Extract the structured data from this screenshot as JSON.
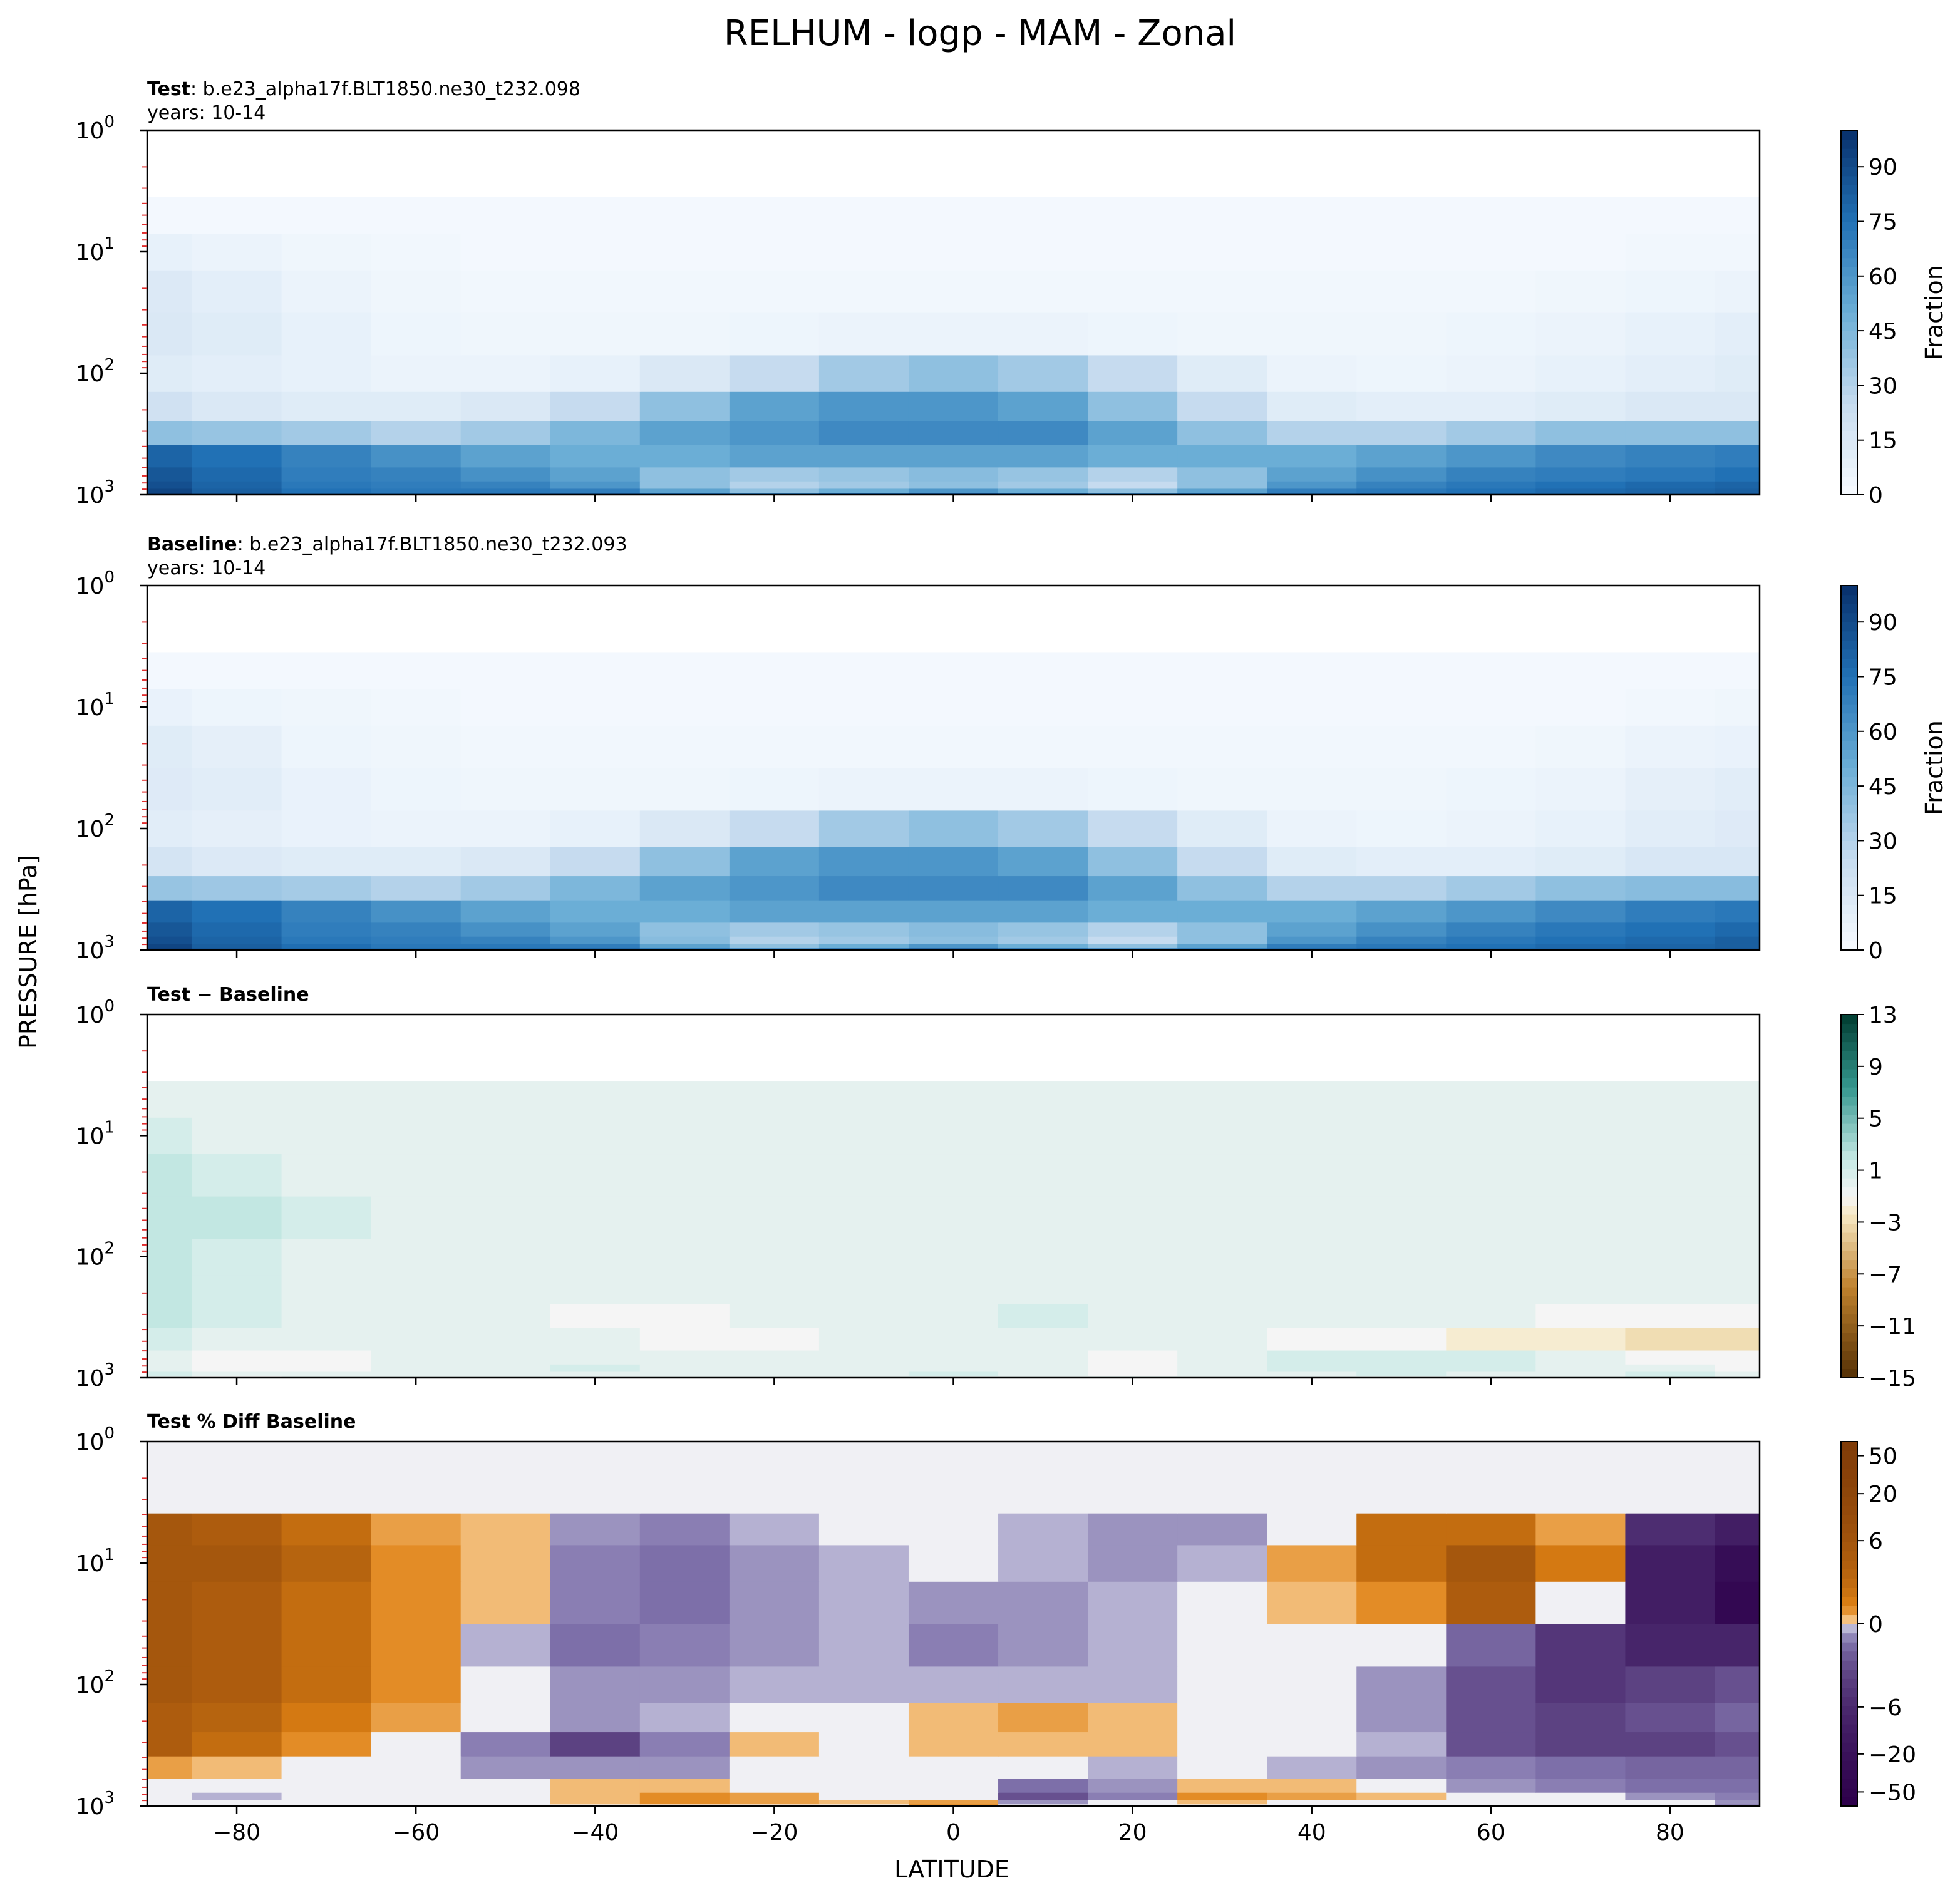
{
  "figure": {
    "title": "RELHUM - logp - MAM - Zonal",
    "ylabel": "PRESSURE [hPa]",
    "xlabel": "LATITUDE"
  },
  "chart_data": [
    {
      "type": "heatmap",
      "panel": "test",
      "title_bold": "Test",
      "title_rest": ": b.e23_alpha17f.BLT1850.ne30_t232.098",
      "subtitle": "years: 10-14",
      "x": [
        -90,
        -80,
        -70,
        -60,
        -50,
        -40,
        -30,
        -20,
        -10,
        0,
        10,
        20,
        30,
        40,
        50,
        60,
        70,
        80,
        90
      ],
      "y": [
        1000,
        925,
        850,
        700,
        500,
        300,
        200,
        100,
        50,
        20,
        10,
        5
      ],
      "z": [
        [
          95,
          85,
          80,
          78,
          80,
          82,
          75,
          70,
          80,
          85,
          80,
          70,
          75,
          80,
          82,
          80,
          80,
          82,
          85
        ],
        [
          92,
          82,
          75,
          72,
          72,
          70,
          55,
          40,
          50,
          60,
          50,
          40,
          55,
          70,
          72,
          75,
          78,
          80,
          82
        ],
        [
          88,
          80,
          72,
          70,
          68,
          60,
          40,
          30,
          35,
          40,
          35,
          25,
          40,
          60,
          68,
          72,
          75,
          78,
          80
        ],
        [
          85,
          78,
          70,
          68,
          62,
          55,
          40,
          35,
          38,
          42,
          38,
          30,
          40,
          55,
          62,
          68,
          70,
          72,
          75
        ],
        [
          80,
          75,
          68,
          62,
          55,
          50,
          50,
          55,
          55,
          55,
          55,
          50,
          50,
          50,
          55,
          60,
          65,
          68,
          70
        ],
        [
          40,
          38,
          35,
          30,
          35,
          45,
          55,
          60,
          65,
          65,
          65,
          55,
          40,
          30,
          30,
          35,
          40,
          40,
          40
        ],
        [
          20,
          15,
          12,
          12,
          15,
          25,
          40,
          55,
          60,
          60,
          55,
          40,
          25,
          12,
          10,
          10,
          12,
          15,
          15
        ],
        [
          12,
          10,
          8,
          6,
          6,
          8,
          15,
          25,
          35,
          40,
          35,
          25,
          12,
          6,
          5,
          6,
          8,
          10,
          12
        ],
        [
          15,
          12,
          8,
          5,
          4,
          4,
          4,
          5,
          6,
          6,
          6,
          5,
          4,
          4,
          4,
          5,
          6,
          8,
          10
        ],
        [
          14,
          10,
          6,
          4,
          3,
          3,
          3,
          3,
          3,
          3,
          3,
          3,
          3,
          3,
          3,
          3,
          4,
          5,
          6
        ],
        [
          8,
          6,
          4,
          3,
          2,
          2,
          2,
          2,
          2,
          2,
          2,
          2,
          2,
          2,
          2,
          2,
          2,
          3,
          3
        ],
        [
          2,
          2,
          2,
          2,
          2,
          2,
          2,
          2,
          2,
          2,
          2,
          2,
          2,
          2,
          2,
          2,
          2,
          2,
          2
        ]
      ],
      "colorbar": {
        "label": "Fraction",
        "ticks": [
          0,
          15,
          30,
          45,
          60,
          75,
          90
        ],
        "range": [
          0,
          100
        ],
        "cmap": "Blues"
      }
    },
    {
      "type": "heatmap",
      "panel": "baseline",
      "title_bold": "Baseline",
      "title_rest": ": b.e23_alpha17f.BLT1850.ne30_t232.093",
      "subtitle": "years: 10-14",
      "x": [
        -90,
        -80,
        -70,
        -60,
        -50,
        -40,
        -30,
        -20,
        -10,
        0,
        10,
        20,
        30,
        40,
        50,
        60,
        70,
        80,
        90
      ],
      "y": [
        1000,
        925,
        850,
        700,
        500,
        300,
        200,
        100,
        50,
        20,
        10,
        5
      ],
      "z": [
        [
          95,
          86,
          80,
          78,
          80,
          82,
          76,
          70,
          80,
          85,
          80,
          72,
          75,
          80,
          82,
          80,
          80,
          82,
          85
        ],
        [
          92,
          82,
          76,
          72,
          72,
          70,
          55,
          40,
          50,
          60,
          50,
          40,
          55,
          70,
          72,
          75,
          78,
          80,
          82
        ],
        [
          88,
          80,
          72,
          70,
          68,
          60,
          42,
          30,
          35,
          40,
          35,
          25,
          40,
          60,
          68,
          72,
          75,
          78,
          82
        ],
        [
          85,
          78,
          70,
          68,
          62,
          55,
          40,
          35,
          38,
          42,
          38,
          30,
          40,
          55,
          62,
          68,
          72,
          75,
          78
        ],
        [
          80,
          75,
          68,
          62,
          55,
          50,
          50,
          55,
          55,
          55,
          55,
          50,
          50,
          50,
          55,
          60,
          65,
          70,
          72
        ],
        [
          38,
          36,
          34,
          30,
          35,
          45,
          55,
          60,
          65,
          65,
          65,
          55,
          40,
          30,
          30,
          35,
          40,
          42,
          42
        ],
        [
          18,
          14,
          12,
          12,
          15,
          25,
          40,
          55,
          60,
          60,
          55,
          40,
          25,
          12,
          10,
          10,
          12,
          16,
          16
        ],
        [
          11,
          9,
          7,
          6,
          6,
          8,
          15,
          25,
          35,
          40,
          35,
          25,
          12,
          6,
          5,
          6,
          8,
          11,
          13
        ],
        [
          13,
          11,
          7,
          5,
          4,
          4,
          4,
          5,
          6,
          6,
          6,
          5,
          4,
          4,
          4,
          5,
          6,
          9,
          11
        ],
        [
          12,
          9,
          5,
          4,
          3,
          3,
          3,
          3,
          3,
          3,
          3,
          3,
          3,
          3,
          3,
          3,
          4,
          6,
          7
        ],
        [
          7,
          5,
          4,
          3,
          2,
          2,
          2,
          2,
          2,
          2,
          2,
          2,
          2,
          2,
          2,
          2,
          2,
          3,
          4
        ],
        [
          2,
          2,
          2,
          2,
          2,
          2,
          2,
          2,
          2,
          2,
          2,
          2,
          2,
          2,
          2,
          2,
          2,
          2,
          2
        ]
      ],
      "colorbar": {
        "label": "Fraction",
        "ticks": [
          0,
          15,
          30,
          45,
          60,
          75,
          90
        ],
        "range": [
          0,
          100
        ],
        "cmap": "Blues"
      }
    },
    {
      "type": "heatmap",
      "panel": "difference",
      "title_bold": "Test − Baseline",
      "x": [
        -90,
        -80,
        -70,
        -60,
        -50,
        -40,
        -30,
        -20,
        -10,
        0,
        10,
        20,
        30,
        40,
        50,
        60,
        70,
        80,
        90
      ],
      "y": [
        1000,
        925,
        850,
        700,
        500,
        300,
        200,
        100,
        50,
        20,
        10,
        5
      ],
      "z": [
        [
          0,
          -1,
          0,
          0,
          0,
          0,
          0,
          0,
          0,
          0,
          0,
          0,
          0,
          0,
          0,
          0,
          0,
          1,
          0
        ],
        [
          1,
          0,
          0,
          0,
          0,
          0,
          0,
          0,
          0,
          1,
          0,
          -1,
          0,
          0,
          1,
          0,
          0,
          1,
          0
        ],
        [
          0,
          -1,
          -1,
          0,
          0,
          1,
          0,
          0,
          0,
          0,
          0,
          -1,
          0,
          1,
          1,
          1,
          0,
          0,
          -1
        ],
        [
          0,
          -1,
          -1,
          0,
          0,
          0,
          0,
          0,
          0,
          0,
          0,
          -1,
          0,
          1,
          1,
          1,
          0,
          -1,
          -1
        ],
        [
          1,
          0,
          0,
          0,
          0,
          0,
          -1,
          -1,
          0,
          0,
          0,
          0,
          0,
          -1,
          -1,
          -2,
          -2,
          -3,
          -3
        ],
        [
          2,
          1,
          0,
          0,
          0,
          -1,
          -1,
          0,
          0,
          0,
          1,
          0,
          0,
          0,
          0,
          0,
          -1,
          -1,
          -1
        ],
        [
          2,
          1,
          0,
          0,
          0,
          0,
          0,
          0,
          0,
          0,
          0,
          0,
          0,
          0,
          0,
          0,
          0,
          0,
          0
        ],
        [
          2,
          1,
          0,
          0,
          0,
          0,
          0,
          0,
          0,
          0,
          0,
          0,
          0,
          0,
          0,
          0,
          0,
          0,
          0
        ],
        [
          2,
          2,
          1,
          0,
          0,
          0,
          0,
          0,
          0,
          0,
          0,
          0,
          0,
          0,
          0,
          0,
          0,
          0,
          0
        ],
        [
          2,
          1,
          0,
          0,
          0,
          0,
          0,
          0,
          0,
          0,
          0,
          0,
          0,
          0,
          0,
          0,
          0,
          0,
          0
        ],
        [
          1,
          0,
          0,
          0,
          0,
          0,
          0,
          0,
          0,
          0,
          0,
          0,
          0,
          0,
          0,
          0,
          0,
          0,
          0
        ],
        [
          0,
          0,
          0,
          0,
          0,
          0,
          0,
          0,
          0,
          0,
          0,
          0,
          0,
          0,
          0,
          0,
          0,
          0,
          0
        ]
      ],
      "colorbar": {
        "ticks": [
          -15,
          -11,
          -7,
          -3,
          1,
          5,
          9,
          13
        ],
        "range": [
          -15,
          13
        ],
        "cmap": "BrBG"
      }
    },
    {
      "type": "heatmap",
      "panel": "percent_difference",
      "title_bold": "Test % Diff Baseline",
      "x": [
        -90,
        -80,
        -70,
        -60,
        -50,
        -40,
        -30,
        -20,
        -10,
        0,
        10,
        20,
        30,
        40,
        50,
        60,
        70,
        80,
        90
      ],
      "y": [
        1000,
        925,
        850,
        700,
        500,
        300,
        200,
        100,
        50,
        20,
        10,
        5,
        3,
        1
      ],
      "z": [
        [
          0,
          0,
          0,
          0,
          0,
          0,
          0,
          0,
          0,
          6,
          0,
          0,
          0,
          0,
          0,
          0,
          0,
          0,
          -6
        ],
        [
          0,
          0,
          0,
          0,
          0,
          2,
          6,
          4,
          2,
          4,
          -4,
          0,
          2,
          0,
          0,
          0,
          0,
          0,
          -4
        ],
        [
          0,
          -2,
          0,
          0,
          0,
          2,
          6,
          4,
          0,
          0,
          -15,
          -6,
          6,
          4,
          2,
          0,
          0,
          -4,
          -6
        ],
        [
          0,
          0,
          0,
          0,
          0,
          2,
          2,
          0,
          0,
          0,
          -8,
          -4,
          2,
          2,
          0,
          -4,
          -6,
          -8,
          -8
        ],
        [
          4,
          2,
          0,
          0,
          -4,
          -4,
          -4,
          0,
          0,
          0,
          0,
          -2,
          0,
          -2,
          -4,
          -6,
          -8,
          -10,
          -10
        ],
        [
          25,
          15,
          6,
          0,
          -6,
          -20,
          -6,
          2,
          0,
          2,
          2,
          2,
          0,
          0,
          -2,
          -15,
          -20,
          -20,
          -15
        ],
        [
          25,
          20,
          10,
          4,
          0,
          -4,
          -2,
          0,
          0,
          2,
          4,
          2,
          0,
          0,
          -4,
          -15,
          -20,
          -15,
          -10
        ],
        [
          30,
          25,
          15,
          6,
          0,
          -4,
          -4,
          -2,
          -2,
          -2,
          -2,
          -2,
          0,
          0,
          -4,
          -15,
          -25,
          -20,
          -15
        ],
        [
          30,
          25,
          15,
          6,
          -2,
          -8,
          -6,
          -4,
          -2,
          -6,
          -4,
          -2,
          0,
          0,
          0,
          -10,
          -25,
          -35,
          -35
        ],
        [
          30,
          25,
          15,
          6,
          2,
          -6,
          -8,
          -4,
          -2,
          -4,
          -4,
          -2,
          0,
          2,
          6,
          25,
          0,
          -40,
          -60
        ],
        [
          30,
          30,
          20,
          6,
          2,
          -6,
          -8,
          -4,
          -2,
          0,
          -2,
          -4,
          -2,
          4,
          15,
          30,
          10,
          -40,
          -55
        ],
        [
          30,
          25,
          15,
          4,
          2,
          -4,
          -6,
          -2,
          0,
          0,
          -2,
          -4,
          -4,
          0,
          15,
          15,
          4,
          -30,
          -40
        ],
        [
          0,
          0,
          0,
          0,
          0,
          0,
          0,
          0,
          0,
          0,
          0,
          0,
          0,
          0,
          0,
          0,
          0,
          0,
          0
        ],
        [
          0,
          0,
          0,
          0,
          0,
          0,
          0,
          0,
          0,
          0,
          0,
          0,
          0,
          0,
          0,
          0,
          0,
          0,
          0
        ]
      ],
      "colorbar": {
        "ticks": [
          -50,
          -20,
          -6,
          0,
          6,
          20,
          50
        ],
        "range": [
          -70,
          70
        ],
        "cmap": "PuOr_r"
      }
    }
  ],
  "axes": {
    "xticks": [
      -80,
      -60,
      -40,
      -20,
      0,
      20,
      40,
      60,
      80
    ],
    "xlim": [
      -90,
      90
    ],
    "yscale": "log",
    "ylim": [
      1000,
      1
    ],
    "yticks": [
      {
        "value": 1,
        "base": "10",
        "exp": "0"
      },
      {
        "value": 10,
        "base": "10",
        "exp": "1"
      },
      {
        "value": 100,
        "base": "10",
        "exp": "2"
      },
      {
        "value": 1000,
        "base": "10",
        "exp": "3"
      }
    ]
  }
}
